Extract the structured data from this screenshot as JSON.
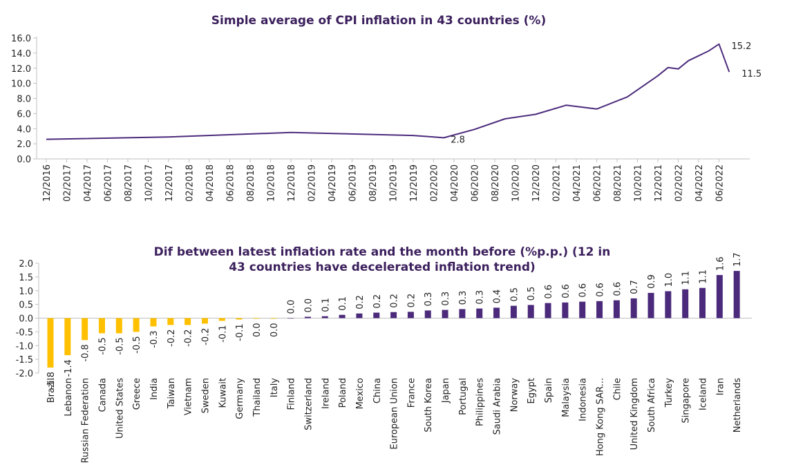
{
  "chart_data": [
    {
      "type": "line",
      "title": "Simple average of CPI inflation in 43 countries (%)",
      "xlabel": "",
      "ylabel": "",
      "ylim": [
        0,
        16
      ],
      "yticks": [
        "0.0",
        "2.0",
        "4.0",
        "6.0",
        "8.0",
        "10.0",
        "12.0",
        "14.0",
        "16.0"
      ],
      "x_tick_labels": [
        "12/2016",
        "02/2017",
        "04/2017",
        "06/2017",
        "08/2017",
        "10/2017",
        "12/2017",
        "02/2018",
        "04/2018",
        "06/2018",
        "08/2018",
        "10/2018",
        "12/2018",
        "02/2019",
        "04/2019",
        "06/2019",
        "08/2019",
        "10/2019",
        "12/2019",
        "02/2020",
        "04/2020",
        "06/2020",
        "08/2020",
        "10/2020",
        "12/2020",
        "02/2021",
        "04/2021",
        "06/2021",
        "08/2021",
        "10/2021",
        "12/2021",
        "02/2022",
        "04/2022",
        "06/2022"
      ],
      "series": [
        {
          "color": "#4b2a7b",
          "points": [
            {
              "x": "12/2016",
              "y": 2.6
            },
            {
              "x": "12/2017",
              "y": 2.9
            },
            {
              "x": "12/2018",
              "y": 3.5
            },
            {
              "x": "12/2019",
              "y": 3.1
            },
            {
              "x": "03/2020",
              "y": 2.8
            },
            {
              "x": "06/2020",
              "y": 3.9
            },
            {
              "x": "09/2020",
              "y": 5.3
            },
            {
              "x": "12/2020",
              "y": 5.9
            },
            {
              "x": "03/2021",
              "y": 7.1
            },
            {
              "x": "06/2021",
              "y": 6.6
            },
            {
              "x": "09/2021",
              "y": 8.2
            },
            {
              "x": "12/2021",
              "y": 11.0
            },
            {
              "x": "01/2022",
              "y": 12.1
            },
            {
              "x": "02/2022",
              "y": 11.9
            },
            {
              "x": "03/2022",
              "y": 13.0
            },
            {
              "x": "05/2022",
              "y": 14.3
            },
            {
              "x": "06/2022",
              "y": 15.2
            },
            {
              "x": "07/2022",
              "y": 11.5
            }
          ]
        }
      ],
      "annotations": [
        {
          "x": "03/2020",
          "y": 2.8,
          "text": "2.8"
        },
        {
          "x": "06/2022",
          "y": 15.2,
          "text": "15.2"
        },
        {
          "x": "07/2022",
          "y": 11.5,
          "text": "11.5"
        }
      ]
    },
    {
      "type": "bar",
      "title_lines": [
        "Dif between latest inflation rate and the month before (%p.p.) (12 in",
        "43 countries have decelerated inflation trend)"
      ],
      "xlabel": "",
      "ylabel": "",
      "ylim": [
        -2.0,
        2.0
      ],
      "yticks": [
        "-2.0",
        "-1.5",
        "-1.0",
        "-0.5",
        "0.0",
        "0.5",
        "1.0",
        "1.5",
        "2.0"
      ],
      "negative_color": "#ffc000",
      "positive_color": "#4b2a7b",
      "categories": [
        "Brazil",
        "Lebanon",
        "Russian Federation",
        "Canada",
        "United States",
        "Greece",
        "India",
        "Taiwan",
        "Vietnam",
        "Sweden",
        "Kuwait",
        "Germany",
        "Thailand",
        "Italy",
        "Finland",
        "Switzerland",
        "Ireland",
        "Poland",
        "Mexico",
        "China",
        "European Union",
        "France",
        "South Korea",
        "Japan",
        "Portugal",
        "Philippines",
        "Saudi Arabia",
        "Norway",
        "Egypt",
        "Spain",
        "Malaysia",
        "Indonesia",
        "Hong Kong SAR...",
        "Chile",
        "United Kingdom",
        "South Africa",
        "Turkey",
        "Singapore",
        "Iceland",
        "Iran",
        "Netherlands"
      ],
      "values": [
        -1.8,
        -1.35,
        -0.8,
        -0.55,
        -0.55,
        -0.5,
        -0.3,
        -0.25,
        -0.25,
        -0.2,
        -0.1,
        -0.05,
        -0.02,
        -0.02,
        0.0,
        0.05,
        0.07,
        0.12,
        0.17,
        0.2,
        0.22,
        0.23,
        0.28,
        0.3,
        0.33,
        0.35,
        0.38,
        0.45,
        0.48,
        0.55,
        0.57,
        0.6,
        0.62,
        0.65,
        0.72,
        0.92,
        0.98,
        1.05,
        1.1,
        1.57,
        1.72
      ],
      "value_labels": [
        "-1.8",
        "-1.4",
        "-0.8",
        "-0.5",
        "-0.5",
        "-0.5",
        "-0.3",
        "-0.2",
        "-0.2",
        "-0.2",
        "-0.1",
        "-0.1",
        "0.0",
        "0.0",
        "0.0",
        "0.0",
        "0.1",
        "0.1",
        "0.2",
        "0.2",
        "0.2",
        "0.2",
        "0.3",
        "0.3",
        "0.3",
        "0.3",
        "0.4",
        "0.5",
        "0.5",
        "0.6",
        "0.6",
        "0.6",
        "0.6",
        "0.6",
        "0.7",
        "0.9",
        "1.0",
        "1.1",
        "1.1",
        "1.6",
        "1.7"
      ]
    }
  ]
}
